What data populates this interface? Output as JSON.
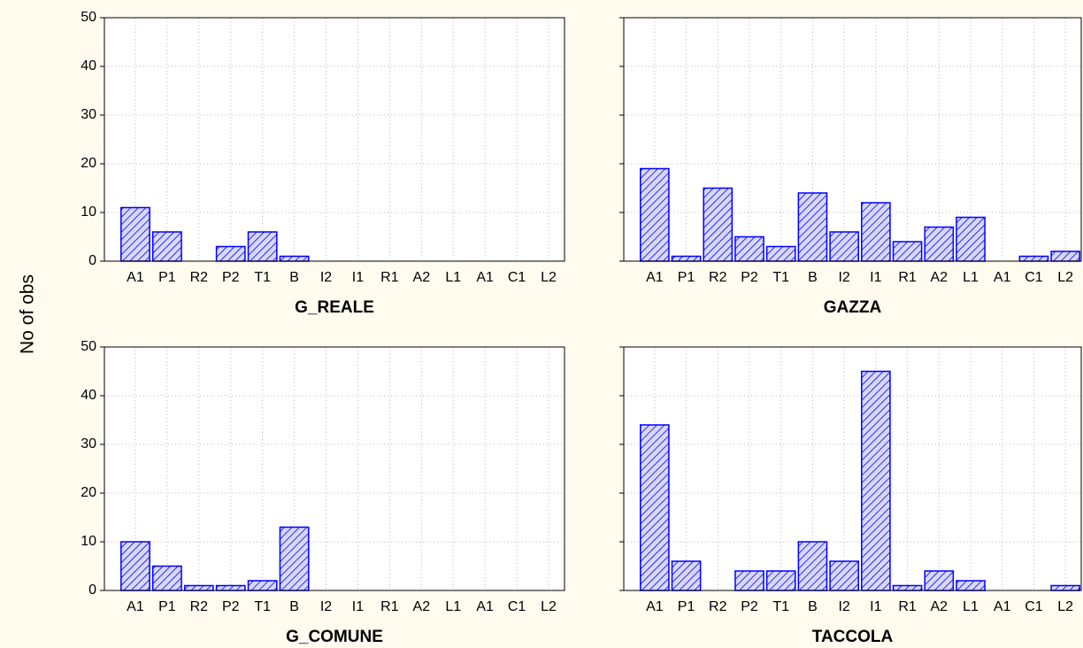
{
  "ylabel": "No of obs",
  "chart_data": [
    {
      "type": "bar",
      "title": "G_REALE",
      "color": "#0000ff",
      "categories": [
        "A1",
        "P1",
        "R2",
        "P2",
        "T1",
        "B",
        "I2",
        "I1",
        "R1",
        "A2",
        "L1",
        "A1",
        "C1",
        "L2"
      ],
      "values": [
        11,
        6,
        0,
        3,
        6,
        1,
        0,
        0,
        0,
        0,
        0,
        0,
        0,
        0
      ],
      "ylim": [
        0,
        50
      ],
      "yticks": [
        0,
        10,
        20,
        30,
        40,
        50
      ],
      "grid": true
    },
    {
      "type": "bar",
      "title": "GAZZA",
      "color": "#0000ff",
      "categories": [
        "A1",
        "P1",
        "R2",
        "P2",
        "T1",
        "B",
        "I2",
        "I1",
        "R1",
        "A2",
        "L1",
        "A1",
        "C1",
        "L2"
      ],
      "values": [
        19,
        1,
        15,
        5,
        3,
        14,
        6,
        12,
        4,
        7,
        9,
        0,
        1,
        2
      ],
      "ylim": [
        0,
        50
      ],
      "yticks": [
        0,
        10,
        20,
        30,
        40,
        50
      ],
      "grid": true
    },
    {
      "type": "bar",
      "title": "G_COMUNE",
      "color": "#0000ff",
      "categories": [
        "A1",
        "P1",
        "R2",
        "P2",
        "T1",
        "B",
        "I2",
        "I1",
        "R1",
        "A2",
        "L1",
        "A1",
        "C1",
        "L2"
      ],
      "values": [
        10,
        5,
        1,
        1,
        2,
        13,
        0,
        0,
        0,
        0,
        0,
        0,
        0,
        0
      ],
      "ylim": [
        0,
        50
      ],
      "yticks": [
        0,
        10,
        20,
        30,
        40,
        50
      ],
      "grid": true
    },
    {
      "type": "bar",
      "title": "TACCOLA",
      "color": "#0000ff",
      "categories": [
        "A1",
        "P1",
        "R2",
        "P2",
        "T1",
        "B",
        "I2",
        "I1",
        "R1",
        "A2",
        "L1",
        "A1",
        "C1",
        "L2"
      ],
      "values": [
        34,
        6,
        0,
        4,
        4,
        10,
        6,
        45,
        1,
        4,
        2,
        0,
        0,
        1
      ],
      "ylim": [
        0,
        50
      ],
      "yticks": [
        0,
        10,
        20,
        30,
        40,
        50
      ],
      "grid": true
    }
  ]
}
